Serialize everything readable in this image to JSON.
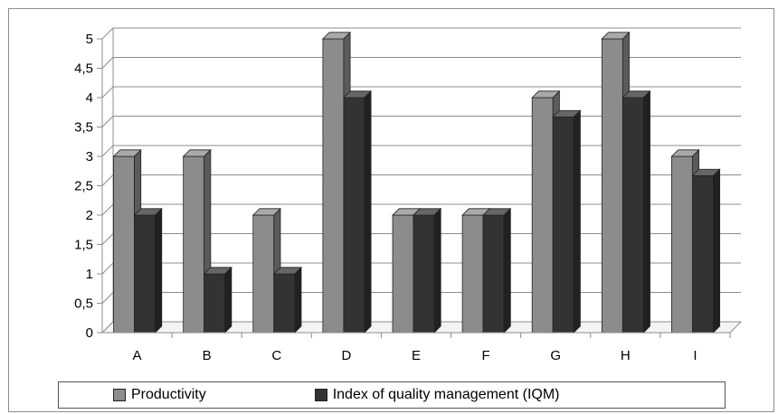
{
  "chart_data": {
    "type": "bar",
    "title": "",
    "xlabel": "",
    "ylabel": "",
    "categories": [
      "A",
      "B",
      "C",
      "D",
      "E",
      "F",
      "G",
      "H",
      "I"
    ],
    "series": [
      {
        "name": "Productivity",
        "color": "#8c8c8c",
        "values": [
          3,
          3,
          2,
          5,
          2,
          2,
          4,
          5,
          3
        ]
      },
      {
        "name": "Index of quality management (IQM)",
        "color": "#333333",
        "values": [
          2,
          1,
          1,
          4,
          2,
          2,
          3.67,
          4,
          2.67
        ]
      }
    ],
    "ylim": [
      0,
      5
    ],
    "yticks": [
      "0",
      "0,5",
      "1",
      "1,5",
      "2",
      "2,5",
      "3",
      "3,5",
      "4",
      "4,5",
      "5"
    ],
    "grid": true,
    "legend": "bottom"
  }
}
